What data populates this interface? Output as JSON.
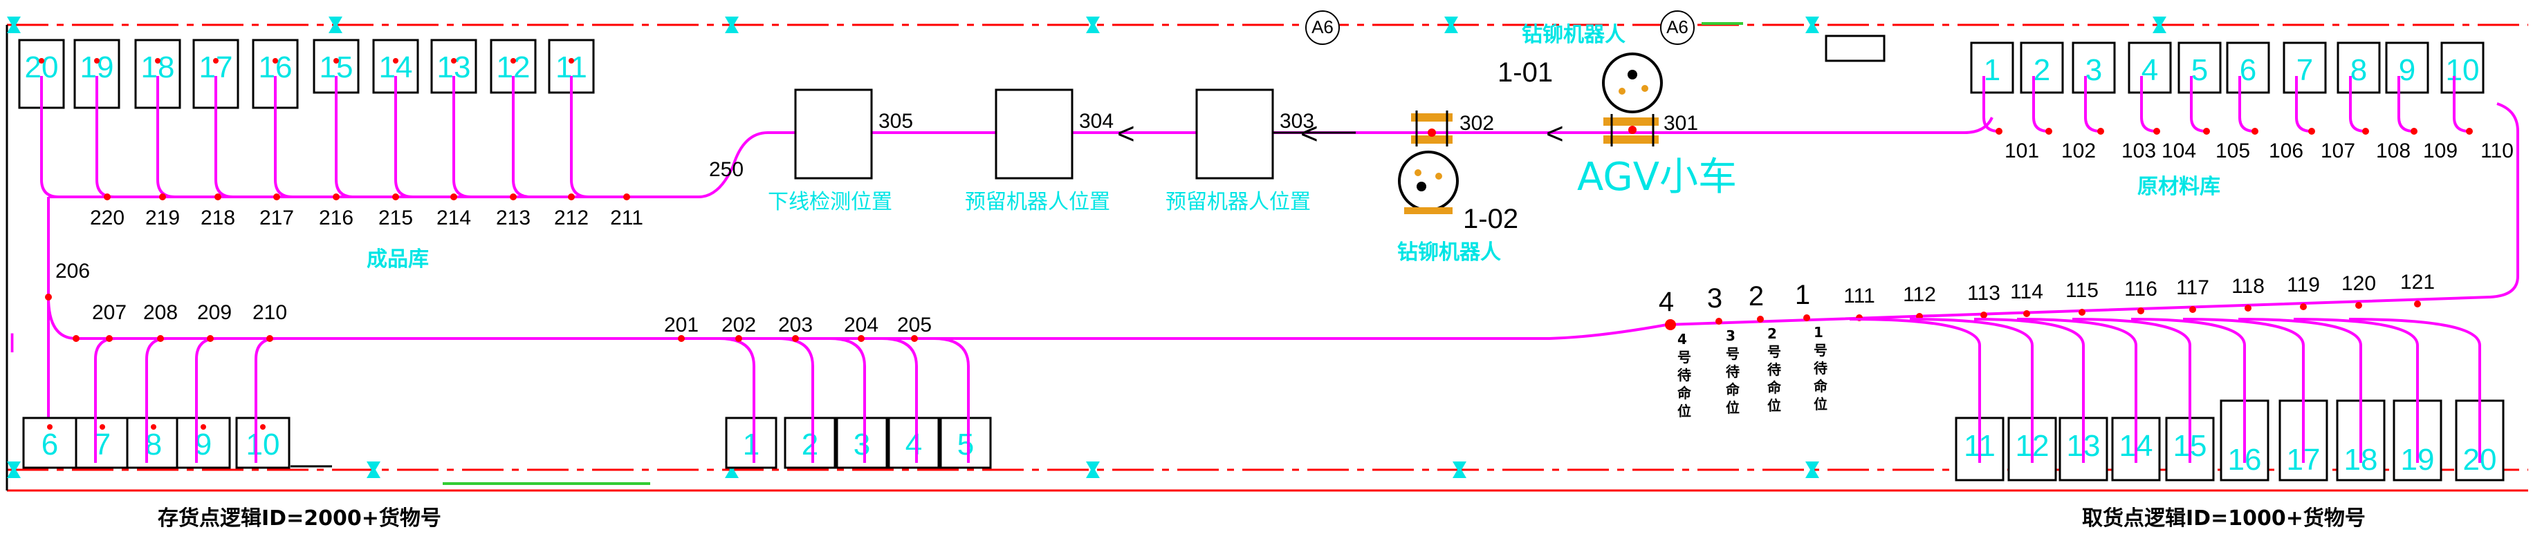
{
  "colors": {
    "path": "#ff00ff",
    "node": "#ff0000",
    "cyan": "#00e5e5",
    "rail": "#ff0000",
    "green": "#33cc33",
    "machine": "#e89c1a",
    "black": "#000000"
  },
  "markers": {
    "a6_left": "A6",
    "a6_right": "A6"
  },
  "headline_left_top": "钻铆机器人",
  "robot_top_id": "1-01",
  "robot_bottom_id": "1-02",
  "robot_bottom_label": "钻铆机器人",
  "agv_label": "AGV小车",
  "top_right_cells": [
    "1",
    "2",
    "3",
    "4",
    "5",
    "6",
    "7",
    "8",
    "9",
    "10"
  ],
  "top_right_nodes": [
    "101",
    "102",
    "103",
    "104",
    "105",
    "106",
    "107",
    "108",
    "109",
    "110"
  ],
  "top_right_label": "原材料库",
  "top_left_cells": [
    "20",
    "19",
    "18",
    "17",
    "16",
    "15",
    "14",
    "13",
    "12",
    "11"
  ],
  "top_left_nodes": [
    "220",
    "219",
    "218",
    "217",
    "216",
    "215",
    "214",
    "213",
    "212",
    "211"
  ],
  "top_left_label": "成品库",
  "node_206": "206",
  "node_250": "250",
  "stations": [
    {
      "id": "305",
      "label": "下线检测位置"
    },
    {
      "id": "304",
      "label": "预留机器人位置"
    },
    {
      "id": "303",
      "label": "预留机器人位置"
    }
  ],
  "station_302": "302",
  "station_301": "301",
  "bottom_left_nodes_a": [
    "207",
    "208",
    "209",
    "210"
  ],
  "bottom_left_cells_a": [
    "6",
    "7",
    "8",
    "9",
    "10"
  ],
  "bottom_left_nodes_b": [
    "201",
    "202",
    "203",
    "204",
    "205"
  ],
  "bottom_left_cells_b": [
    "1",
    "2",
    "3",
    "4",
    "5"
  ],
  "waiting_positions": [
    {
      "num": "4",
      "label": "4号待命位"
    },
    {
      "num": "3",
      "label": "3号待命位"
    },
    {
      "num": "2",
      "label": "2号待命位"
    },
    {
      "num": "1",
      "label": "1号待命位"
    }
  ],
  "bottom_right_nodes": [
    "111",
    "112",
    "113",
    "114",
    "115",
    "116",
    "117",
    "118",
    "119",
    "120",
    "121"
  ],
  "bottom_right_cells": [
    "11",
    "12",
    "13",
    "14",
    "15",
    "16",
    "17",
    "18",
    "19",
    "20"
  ],
  "caption_left": "存货点逻辑ID=2000+货物号",
  "caption_right": "取货点逻辑ID=1000+货物号",
  "side_mark": "I"
}
